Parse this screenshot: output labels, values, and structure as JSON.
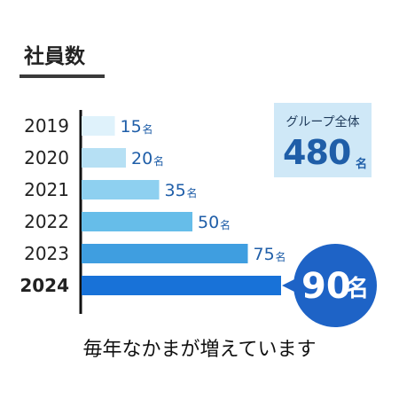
{
  "title": "社員数",
  "summary": {
    "label": "グループ全体",
    "value": "480",
    "unit": "名"
  },
  "footer": "毎年なかまが増えています",
  "chart_data": {
    "type": "bar",
    "orientation": "horizontal",
    "categories": [
      "2019",
      "2020",
      "2021",
      "2022",
      "2023",
      "2024"
    ],
    "values": [
      15,
      20,
      35,
      50,
      75,
      90
    ],
    "unit": "名",
    "highlight": "2024",
    "colors": [
      "#dff2fb",
      "#b6e0f4",
      "#8ed0f0",
      "#66bde9",
      "#3f9ee0",
      "#1872d8"
    ],
    "callout_color": "#1e63c6",
    "xlim": [
      0,
      90
    ],
    "grid": false
  }
}
